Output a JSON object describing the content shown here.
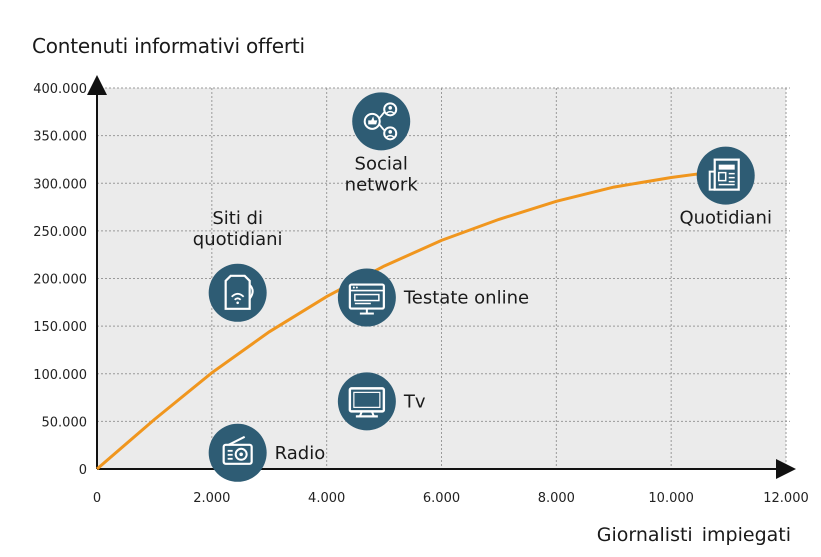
{
  "chart_data": {
    "type": "scatter",
    "title": "",
    "ylabel": "Contenuti informativi offerti",
    "xlabel": "Giornalisti  impiegati",
    "xlim": [
      0,
      12000
    ],
    "ylim": [
      0,
      400000
    ],
    "x_ticks": [
      "0",
      "2.000",
      "4.000",
      "6.000",
      "8.000",
      "10.000",
      "12.000"
    ],
    "y_ticks": [
      "0",
      "50.000",
      "100.000",
      "150.000",
      "200.000",
      "250.000",
      "300.000",
      "350.000",
      "400.000"
    ],
    "grid": true,
    "points": [
      {
        "label": "Radio",
        "x": 2450,
        "y": 17000,
        "icon": "radio-icon",
        "label_pos": "right"
      },
      {
        "label": "Tv",
        "x": 4700,
        "y": 71000,
        "icon": "tv-icon",
        "label_pos": "right"
      },
      {
        "label": "Testate online",
        "x": 4700,
        "y": 180000,
        "icon": "monitor-icon",
        "label_pos": "right"
      },
      {
        "label": "Siti di quotidiani",
        "x": 2450,
        "y": 185000,
        "icon": "mobile-page-icon",
        "label_pos": "above"
      },
      {
        "label": "Social network",
        "x": 4950,
        "y": 365000,
        "icon": "social-share-icon",
        "label_pos": "below"
      },
      {
        "label": "Quotidiani",
        "x": 10950,
        "y": 308000,
        "icon": "newspaper-icon",
        "label_pos": "below"
      }
    ],
    "curve": {
      "color": "#F0961E",
      "x": [
        0,
        1000,
        2000,
        3000,
        4000,
        5000,
        6000,
        7000,
        8000,
        9000,
        10000,
        10500
      ],
      "y": [
        0,
        52000,
        101000,
        144000,
        181000,
        213000,
        240000,
        262000,
        281000,
        296000,
        306000,
        310000
      ]
    }
  },
  "colors": {
    "plot_bg": "#EBEBEB",
    "grid": "#9A9A9A",
    "axis": "#111111",
    "curve": "#F0961E",
    "icon_circle": "#2E5C74",
    "icon_glyph": "#FFFFFF"
  }
}
